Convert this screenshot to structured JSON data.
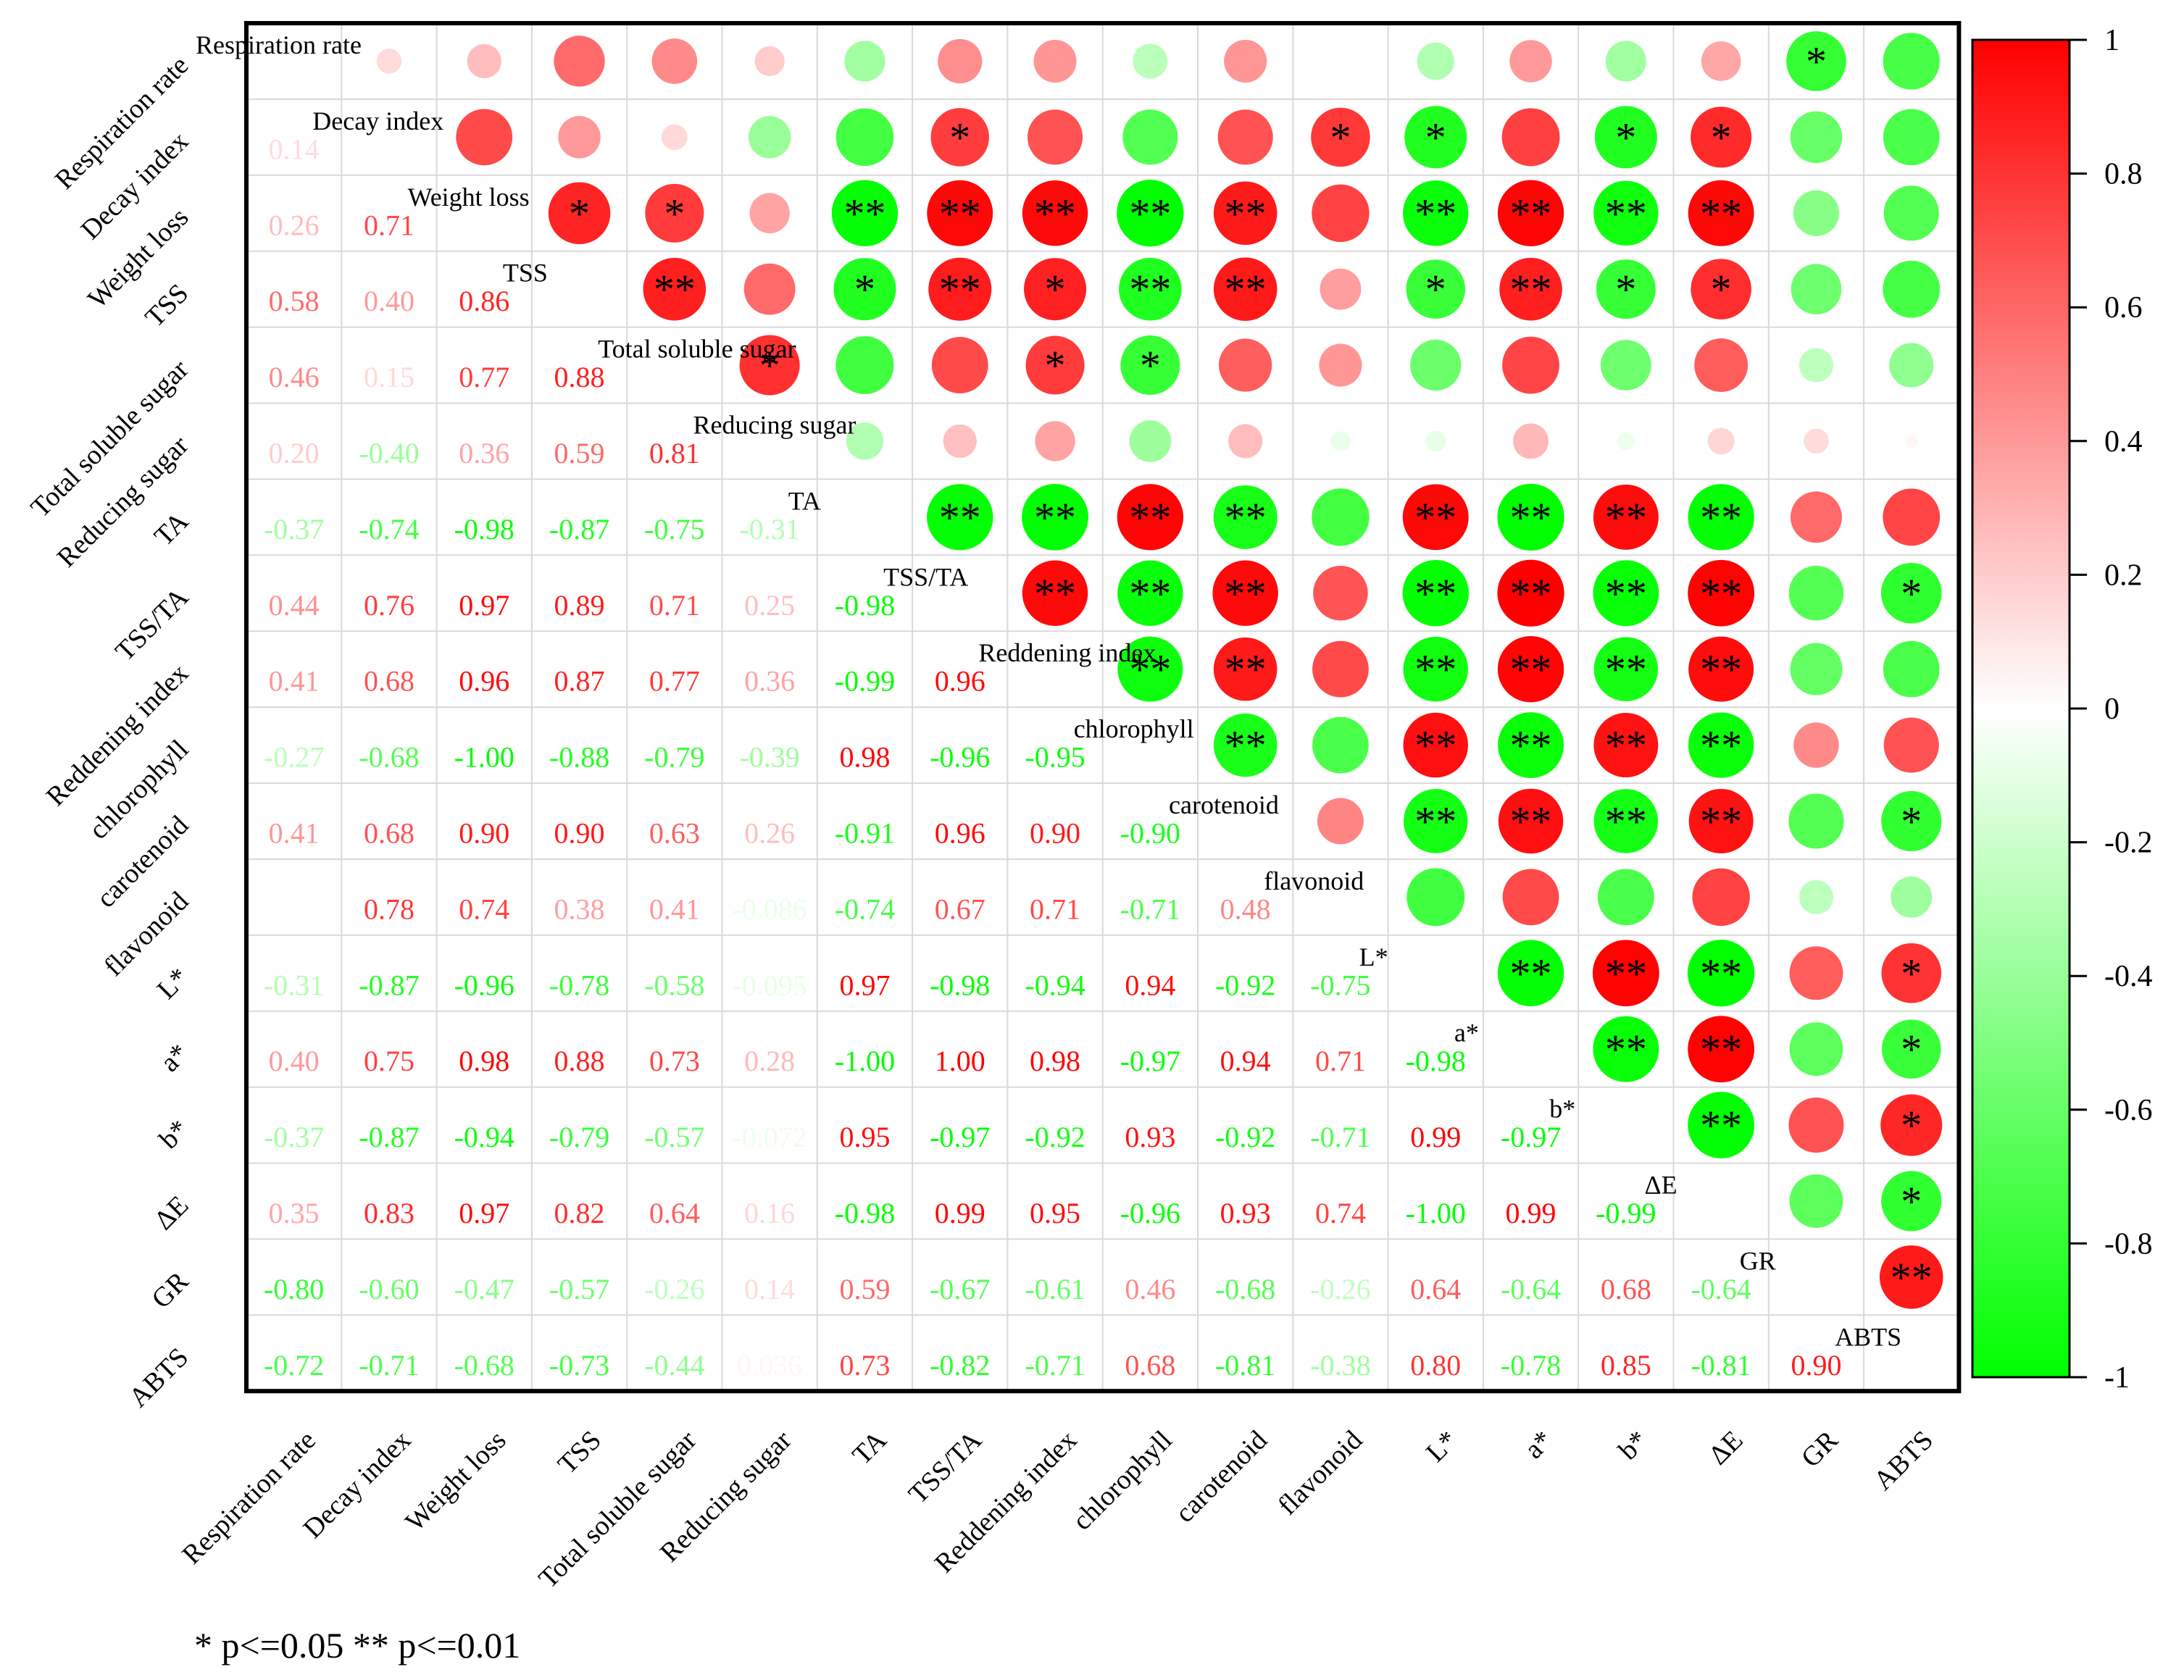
{
  "chart_data": {
    "type": "heatmap",
    "variables": [
      "Respiration rate",
      "Decay index",
      "Weight loss",
      "TSS",
      "Total soluble sugar",
      "Reducing sugar",
      "TA",
      "TSS/TA",
      "Reddening index",
      "chlorophyll",
      "carotenoid",
      "flavonoid",
      "L*",
      "a*",
      "b*",
      "ΔE",
      "GR",
      "ABTS"
    ],
    "lower_triangle_text": [
      [],
      [
        "0.14"
      ],
      [
        "0.26",
        "0.71"
      ],
      [
        "0.58",
        "0.40",
        "0.86"
      ],
      [
        "0.46",
        "0.15",
        "0.77",
        "0.88"
      ],
      [
        "0.20",
        "-0.40",
        "0.36",
        "0.59",
        "0.81"
      ],
      [
        "-0.37",
        "-0.74",
        "-0.98",
        "-0.87",
        "-0.75",
        "-0.31"
      ],
      [
        "0.44",
        "0.76",
        "0.97",
        "0.89",
        "0.71",
        "0.25",
        "-0.98"
      ],
      [
        "0.41",
        "0.68",
        "0.96",
        "0.87",
        "0.77",
        "0.36",
        "-0.99",
        "0.96"
      ],
      [
        "-0.27",
        "-0.68",
        "-1.00",
        "-0.88",
        "-0.79",
        "-0.39",
        "0.98",
        "-0.96",
        "-0.95"
      ],
      [
        "0.41",
        "0.68",
        "0.90",
        "0.90",
        "0.63",
        "0.26",
        "-0.91",
        "0.96",
        "0.90",
        "-0.90"
      ],
      [
        "",
        "0.78",
        "0.74",
        "0.38",
        "0.41",
        "-0.086",
        "-0.74",
        "0.67",
        "0.71",
        "-0.71",
        "0.48"
      ],
      [
        "-0.31",
        "-0.87",
        "-0.96",
        "-0.78",
        "-0.58",
        "-0.095",
        "0.97",
        "-0.98",
        "-0.94",
        "0.94",
        "-0.92",
        "-0.75"
      ],
      [
        "0.40",
        "0.75",
        "0.98",
        "0.88",
        "0.73",
        "0.28",
        "-1.00",
        "1.00",
        "0.98",
        "-0.97",
        "0.94",
        "0.71",
        "-0.98"
      ],
      [
        "-0.37",
        "-0.87",
        "-0.94",
        "-0.79",
        "-0.57",
        "-0.072",
        "0.95",
        "-0.97",
        "-0.92",
        "0.93",
        "-0.92",
        "-0.71",
        "0.99",
        "-0.97"
      ],
      [
        "0.35",
        "0.83",
        "0.97",
        "0.82",
        "0.64",
        "0.16",
        "-0.98",
        "0.99",
        "0.95",
        "-0.96",
        "0.93",
        "0.74",
        "-1.00",
        "0.99",
        "-0.99"
      ],
      [
        "-0.80",
        "-0.60",
        "-0.47",
        "-0.57",
        "-0.26",
        "0.14",
        "0.59",
        "-0.67",
        "-0.61",
        "0.46",
        "-0.68",
        "-0.26",
        "0.64",
        "-0.64",
        "0.68",
        "-0.64"
      ],
      [
        "-0.72",
        "-0.71",
        "-0.68",
        "-0.73",
        "-0.44",
        "0.036",
        "0.73",
        "-0.82",
        "-0.71",
        "0.68",
        "-0.81",
        "-0.38",
        "0.80",
        "-0.78",
        "0.85",
        "-0.81",
        "0.90"
      ]
    ],
    "significance": [
      [
        "",
        "",
        "",
        "",
        "",
        "",
        "",
        "",
        "",
        "",
        "",
        "",
        "",
        "",
        "",
        "",
        "*",
        ""
      ],
      [
        "",
        "",
        "",
        "",
        "",
        "",
        "",
        "*",
        "",
        "",
        "",
        "*",
        "*",
        "",
        "*",
        "*",
        "",
        ""
      ],
      [
        "",
        "",
        "",
        "*",
        "*",
        "",
        "**",
        "**",
        "**",
        "**",
        "**",
        "",
        "**",
        "**",
        "**",
        "**",
        "",
        ""
      ],
      [
        "",
        "",
        "",
        "",
        "**",
        "",
        "*",
        "**",
        "*",
        "**",
        "**",
        "",
        "*",
        "**",
        "*",
        "*",
        "",
        ""
      ],
      [
        "",
        "",
        "",
        "",
        "",
        "*",
        "",
        "",
        "*",
        "*",
        "",
        "",
        "",
        "",
        "",
        "",
        "",
        ""
      ],
      [
        "",
        "",
        "",
        "",
        "",
        "",
        "",
        "",
        "",
        "",
        "",
        "",
        "",
        "",
        "",
        "",
        "",
        ""
      ],
      [
        "",
        "",
        "",
        "",
        "",
        "",
        "",
        "**",
        "**",
        "**",
        "**",
        "",
        "**",
        "**",
        "**",
        "**",
        "",
        ""
      ],
      [
        "",
        "",
        "",
        "",
        "",
        "",
        "",
        "",
        "**",
        "**",
        "**",
        "",
        "**",
        "**",
        "**",
        "**",
        "",
        "*"
      ],
      [
        "",
        "",
        "",
        "",
        "",
        "",
        "",
        "",
        "",
        "**",
        "**",
        "",
        "**",
        "**",
        "**",
        "**",
        "",
        ""
      ],
      [
        "",
        "",
        "",
        "",
        "",
        "",
        "",
        "",
        "",
        "",
        "**",
        "",
        "**",
        "**",
        "**",
        "**",
        "",
        ""
      ],
      [
        "",
        "",
        "",
        "",
        "",
        "",
        "",
        "",
        "",
        "",
        "",
        "",
        "**",
        "**",
        "**",
        "**",
        "",
        "*"
      ],
      [
        "",
        "",
        "",
        "",
        "",
        "",
        "",
        "",
        "",
        "",
        "",
        "",
        "",
        "",
        "",
        "",
        "",
        ""
      ],
      [
        "",
        "",
        "",
        "",
        "",
        "",
        "",
        "",
        "",
        "",
        "",
        "",
        "",
        "**",
        "**",
        "**",
        "",
        "*"
      ],
      [
        "",
        "",
        "",
        "",
        "",
        "",
        "",
        "",
        "",
        "",
        "",
        "",
        "",
        "",
        "**",
        "**",
        "",
        "*"
      ],
      [
        "",
        "",
        "",
        "",
        "",
        "",
        "",
        "",
        "",
        "",
        "",
        "",
        "",
        "",
        "",
        "**",
        "",
        "*"
      ],
      [
        "",
        "",
        "",
        "",
        "",
        "",
        "",
        "",
        "",
        "",
        "",
        "",
        "",
        "",
        "",
        "",
        "",
        "*"
      ],
      [
        "",
        "",
        "",
        "",
        "",
        "",
        "",
        "",
        "",
        "",
        "",
        "",
        "",
        "",
        "",
        "",
        "",
        "**"
      ],
      [
        "",
        "",
        "",
        "",
        "",
        "",
        "",
        "",
        "",
        "",
        "",
        "",
        "",
        "",
        "",
        "",
        "",
        ""
      ]
    ],
    "colorbar": {
      "min": -1,
      "max": 1,
      "ticks": [
        "1",
        "0.8",
        "0.6",
        "0.4",
        "0.2",
        "0",
        "-0.2",
        "-0.4",
        "-0.6",
        "-0.8",
        "-1"
      ],
      "colors": {
        "negative": "#00FF00",
        "zero": "#FFFFFF",
        "positive": "#FF0000"
      }
    },
    "footnote": "* p<=0.05   ** p<=0.01"
  }
}
